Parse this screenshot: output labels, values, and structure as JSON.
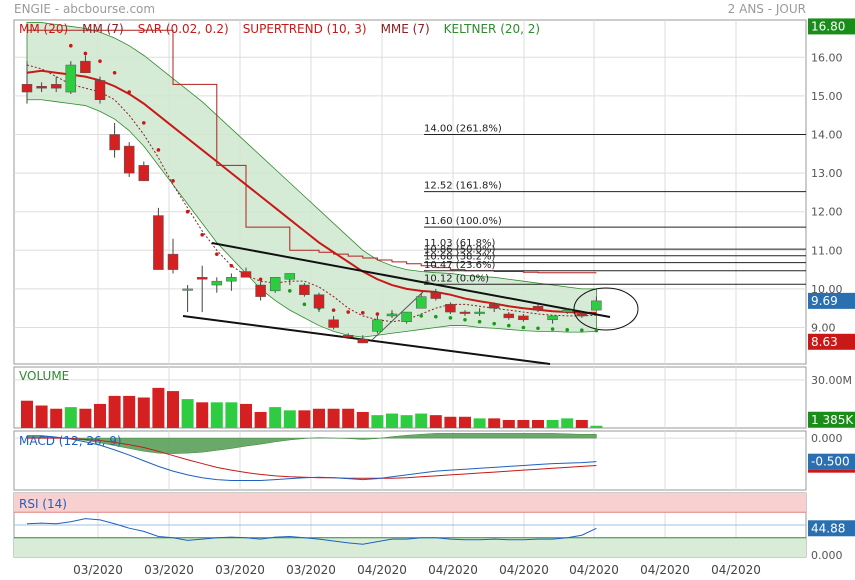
{
  "header": {
    "source": "ENGIE - abcbourse.com",
    "period": "2 ANS - JOUR"
  },
  "colors": {
    "up": "#2ecc40",
    "down": "#d42020",
    "ma": "#c81818",
    "keltner": "#2e8b2e",
    "keltner_fill": "#cfe8cf",
    "macd": "#2060c0",
    "signal": "#c81818",
    "rsi": "#2060c0",
    "rsi_band": "#f8d0d0",
    "grid": "#dddddd"
  },
  "main_legend": [
    {
      "label": "MM (20)",
      "color": "#c81818"
    },
    {
      "label": "MM (7)",
      "color": "#8b2020"
    },
    {
      "label": "SAR (0.02, 0.2)",
      "color": "#c81818"
    },
    {
      "label": "SUPERTREND (10, 3)",
      "color": "#c81818"
    },
    {
      "label": "MME (7)",
      "color": "#8b2020"
    },
    {
      "label": "KELTNER (20, 2)",
      "color": "#2e8b2e"
    }
  ],
  "price_axis": {
    "ticks": [
      "16.00",
      "15.00",
      "14.00",
      "13.00",
      "12.00",
      "11.00",
      "10.00",
      "9.00"
    ],
    "badges": [
      {
        "label": "16.80",
        "value": 16.8,
        "color": "#1a8c1a"
      },
      {
        "label": "9.69",
        "value": 9.69,
        "color": "#2a6fb0"
      },
      {
        "label": "8.63",
        "value": 8.63,
        "color": "#c81818"
      }
    ]
  },
  "fibonacci": [
    {
      "label": "14.00  (261.8%)",
      "value": 14.0
    },
    {
      "label": "12.52  (161.8%)",
      "value": 12.52
    },
    {
      "label": "11.60  (100.0%)",
      "value": 11.6
    },
    {
      "label": "11.03  (61.8%)",
      "value": 11.03
    },
    {
      "label": "10.86  (50.0%)",
      "value": 10.86
    },
    {
      "label": "10.68  (38.2%)",
      "value": 10.68
    },
    {
      "label": "10.47  (23.6%)",
      "value": 10.47
    },
    {
      "label": "10.12  (0.0%)",
      "value": 10.12
    }
  ],
  "x_labels": [
    "03/2020",
    "03/2020",
    "03/2020",
    "03/2020",
    "04/2020",
    "04/2020",
    "04/2020",
    "04/2020",
    "04/2020",
    "04/2020"
  ],
  "volume": {
    "title": "VOLUME",
    "tick": "30.00M",
    "badge": "1 385K"
  },
  "macd": {
    "title": "MACD (12, 26, 9)",
    "tick": "0.000",
    "badge": "-0.500"
  },
  "rsi": {
    "title": "RSI (14)",
    "tick": "0.000",
    "badge": "44.88"
  },
  "chart_data": {
    "type": "candlestick",
    "title": "ENGIE",
    "ylim": [
      8.3,
      17.0
    ],
    "candles": [
      {
        "o": 15.3,
        "h": 15.9,
        "l": 14.8,
        "c": 15.1
      },
      {
        "o": 15.25,
        "h": 15.35,
        "l": 15.1,
        "c": 15.2
      },
      {
        "o": 15.3,
        "h": 15.5,
        "l": 15.1,
        "c": 15.2
      },
      {
        "o": 15.1,
        "h": 15.9,
        "l": 15.05,
        "c": 15.8
      },
      {
        "o": 15.9,
        "h": 16.05,
        "l": 15.6,
        "c": 15.6
      },
      {
        "o": 15.4,
        "h": 15.5,
        "l": 14.8,
        "c": 14.9
      },
      {
        "o": 14.0,
        "h": 14.3,
        "l": 13.4,
        "c": 13.6
      },
      {
        "o": 13.7,
        "h": 13.8,
        "l": 12.9,
        "c": 13.0
      },
      {
        "o": 13.2,
        "h": 13.3,
        "l": 12.8,
        "c": 12.8
      },
      {
        "o": 11.9,
        "h": 12.1,
        "l": 10.5,
        "c": 10.5
      },
      {
        "o": 10.9,
        "h": 11.3,
        "l": 10.4,
        "c": 10.5
      },
      {
        "o": 10.0,
        "h": 10.1,
        "l": 9.4,
        "c": 10.0
      },
      {
        "o": 10.3,
        "h": 10.6,
        "l": 9.4,
        "c": 10.25
      },
      {
        "o": 10.1,
        "h": 10.3,
        "l": 9.9,
        "c": 10.2
      },
      {
        "o": 10.2,
        "h": 10.4,
        "l": 9.95,
        "c": 10.3
      },
      {
        "o": 10.45,
        "h": 10.55,
        "l": 10.3,
        "c": 10.3
      },
      {
        "o": 10.1,
        "h": 10.2,
        "l": 9.7,
        "c": 9.8
      },
      {
        "o": 9.95,
        "h": 10.3,
        "l": 9.9,
        "c": 10.3
      },
      {
        "o": 10.25,
        "h": 10.4,
        "l": 10.1,
        "c": 10.4
      },
      {
        "o": 10.1,
        "h": 10.15,
        "l": 9.8,
        "c": 9.85
      },
      {
        "o": 9.85,
        "h": 9.9,
        "l": 9.4,
        "c": 9.5
      },
      {
        "o": 9.2,
        "h": 9.3,
        "l": 8.95,
        "c": 9.0
      },
      {
        "o": 8.8,
        "h": 8.85,
        "l": 8.7,
        "c": 8.75
      },
      {
        "o": 8.7,
        "h": 8.8,
        "l": 8.65,
        "c": 8.6
      },
      {
        "o": 8.9,
        "h": 9.3,
        "l": 8.85,
        "c": 9.2
      },
      {
        "o": 9.3,
        "h": 9.45,
        "l": 9.25,
        "c": 9.35
      },
      {
        "o": 9.15,
        "h": 9.4,
        "l": 9.1,
        "c": 9.4
      },
      {
        "o": 9.5,
        "h": 9.9,
        "l": 9.5,
        "c": 9.8
      },
      {
        "o": 9.9,
        "h": 10.0,
        "l": 9.7,
        "c": 9.75
      },
      {
        "o": 9.6,
        "h": 9.65,
        "l": 9.35,
        "c": 9.4
      },
      {
        "o": 9.4,
        "h": 9.45,
        "l": 9.3,
        "c": 9.38
      },
      {
        "o": 9.4,
        "h": 9.5,
        "l": 9.3,
        "c": 9.4
      },
      {
        "o": 9.6,
        "h": 9.65,
        "l": 9.4,
        "c": 9.5
      },
      {
        "o": 9.35,
        "h": 9.4,
        "l": 9.2,
        "c": 9.25
      },
      {
        "o": 9.3,
        "h": 9.35,
        "l": 9.15,
        "c": 9.2
      },
      {
        "o": 9.55,
        "h": 9.6,
        "l": 9.4,
        "c": 9.45
      },
      {
        "o": 9.2,
        "h": 9.3,
        "l": 9.1,
        "c": 9.3
      },
      {
        "o": 9.4,
        "h": 9.5,
        "l": 9.35,
        "c": 9.45
      },
      {
        "o": 9.35,
        "h": 9.4,
        "l": 9.25,
        "c": 9.3
      },
      {
        "o": 9.45,
        "h": 9.8,
        "l": 9.45,
        "c": 9.69
      }
    ],
    "mm20": [
      15.6,
      15.65,
      15.6,
      15.55,
      15.5,
      15.4,
      15.25,
      15.05,
      14.8,
      14.5,
      14.2,
      13.9,
      13.6,
      13.3,
      13.0,
      12.7,
      12.4,
      12.1,
      11.8,
      11.5,
      11.2,
      10.95,
      10.7,
      10.45,
      10.25,
      10.1,
      10.0,
      9.95,
      9.92,
      9.85,
      9.75,
      9.68,
      9.62,
      9.55,
      9.5,
      9.46,
      9.42,
      9.4,
      9.38,
      9.38
    ],
    "mm7": [
      15.8,
      15.7,
      15.5,
      15.3,
      15.2,
      15.1,
      14.9,
      14.5,
      14.0,
      13.4,
      12.7,
      12.1,
      11.5,
      11.0,
      10.6,
      10.35,
      10.2,
      10.15,
      10.2,
      10.2,
      10.05,
      9.8,
      9.5,
      9.3,
      9.2,
      9.15,
      9.2,
      9.35,
      9.5,
      9.6,
      9.6,
      9.55,
      9.5,
      9.45,
      9.4,
      9.35,
      9.32,
      9.3,
      9.3,
      9.32
    ],
    "keltner_upper": [
      16.9,
      16.9,
      16.85,
      16.8,
      16.75,
      16.65,
      16.5,
      16.3,
      16.05,
      15.75,
      15.45,
      15.15,
      14.85,
      14.5,
      14.15,
      13.8,
      13.45,
      13.1,
      12.75,
      12.4,
      12.05,
      11.7,
      11.35,
      11.0,
      10.75,
      10.6,
      10.5,
      10.45,
      10.42,
      10.4,
      10.35,
      10.32,
      10.3,
      10.25,
      10.2,
      10.15,
      10.1,
      10.05,
      10.0,
      10.0
    ],
    "keltner_lower": [
      14.9,
      14.9,
      14.85,
      14.8,
      14.75,
      14.6,
      14.4,
      14.1,
      13.7,
      13.2,
      12.7,
      12.2,
      11.7,
      11.2,
      10.8,
      10.4,
      10.0,
      9.7,
      9.45,
      9.25,
      9.05,
      8.9,
      8.8,
      8.75,
      8.8,
      8.85,
      8.9,
      8.95,
      9.0,
      9.05,
      9.05,
      9.0,
      8.98,
      8.95,
      8.92,
      8.9,
      8.9,
      8.88,
      8.88,
      8.9
    ],
    "sar": [
      null,
      null,
      null,
      16.3,
      16.1,
      15.9,
      15.6,
      15.1,
      14.3,
      13.6,
      12.8,
      12.0,
      11.4,
      10.9,
      10.6,
      10.4,
      10.25,
      10.1,
      9.95,
      9.6,
      9.5,
      9.45,
      9.4,
      9.38,
      9.35,
      9.33,
      9.32,
      9.3,
      9.28,
      9.25,
      9.2,
      9.15,
      9.1,
      9.05,
      9.0,
      8.98,
      8.96,
      8.94,
      8.93,
      8.92
    ],
    "supertrend": [
      16.7,
      16.7,
      16.7,
      16.7,
      16.7,
      16.7,
      16.7,
      16.7,
      16.7,
      16.7,
      15.3,
      15.3,
      15.3,
      13.2,
      13.2,
      11.6,
      11.6,
      11.6,
      11.0,
      11.0,
      10.95,
      10.9,
      10.85,
      10.8,
      10.75,
      10.7,
      10.65,
      10.6,
      10.55,
      10.5,
      10.47,
      10.47,
      10.45,
      10.45,
      10.43,
      10.42,
      10.42,
      10.42,
      10.42,
      10.42
    ],
    "volume": [
      17,
      14,
      12,
      13,
      12,
      15,
      20,
      20,
      19,
      25,
      23,
      18,
      16,
      16,
      16,
      15,
      10,
      13,
      11,
      11,
      12,
      12,
      12,
      10,
      8,
      9,
      8,
      9,
      8,
      7,
      7,
      6,
      6,
      5,
      5,
      5,
      5,
      6,
      5,
      1.4
    ],
    "macd_line": [
      0.05,
      0.05,
      0.02,
      -0.02,
      -0.08,
      -0.15,
      -0.25,
      -0.36,
      -0.48,
      -0.6,
      -0.7,
      -0.78,
      -0.84,
      -0.88,
      -0.9,
      -0.9,
      -0.9,
      -0.88,
      -0.86,
      -0.84,
      -0.83,
      -0.84,
      -0.86,
      -0.88,
      -0.86,
      -0.82,
      -0.78,
      -0.74,
      -0.7,
      -0.68,
      -0.66,
      -0.64,
      -0.62,
      -0.6,
      -0.58,
      -0.56,
      -0.54,
      -0.53,
      -0.52,
      -0.5
    ],
    "macd_signal": [
      0.0,
      0.0,
      0.0,
      -0.01,
      -0.03,
      -0.05,
      -0.09,
      -0.14,
      -0.2,
      -0.28,
      -0.37,
      -0.46,
      -0.54,
      -0.62,
      -0.68,
      -0.73,
      -0.77,
      -0.8,
      -0.82,
      -0.83,
      -0.84,
      -0.84,
      -0.85,
      -0.85,
      -0.85,
      -0.85,
      -0.84,
      -0.82,
      -0.8,
      -0.78,
      -0.76,
      -0.74,
      -0.72,
      -0.7,
      -0.68,
      -0.66,
      -0.64,
      -0.62,
      -0.6,
      -0.58
    ],
    "rsi": [
      52,
      53,
      52,
      55,
      60,
      58,
      52,
      45,
      40,
      32,
      30,
      26,
      28,
      30,
      31,
      30,
      28,
      31,
      32,
      30,
      28,
      25,
      22,
      20,
      24,
      28,
      28,
      30,
      30,
      28,
      27,
      27,
      28,
      27,
      27,
      28,
      28,
      30,
      34,
      44.88
    ]
  }
}
